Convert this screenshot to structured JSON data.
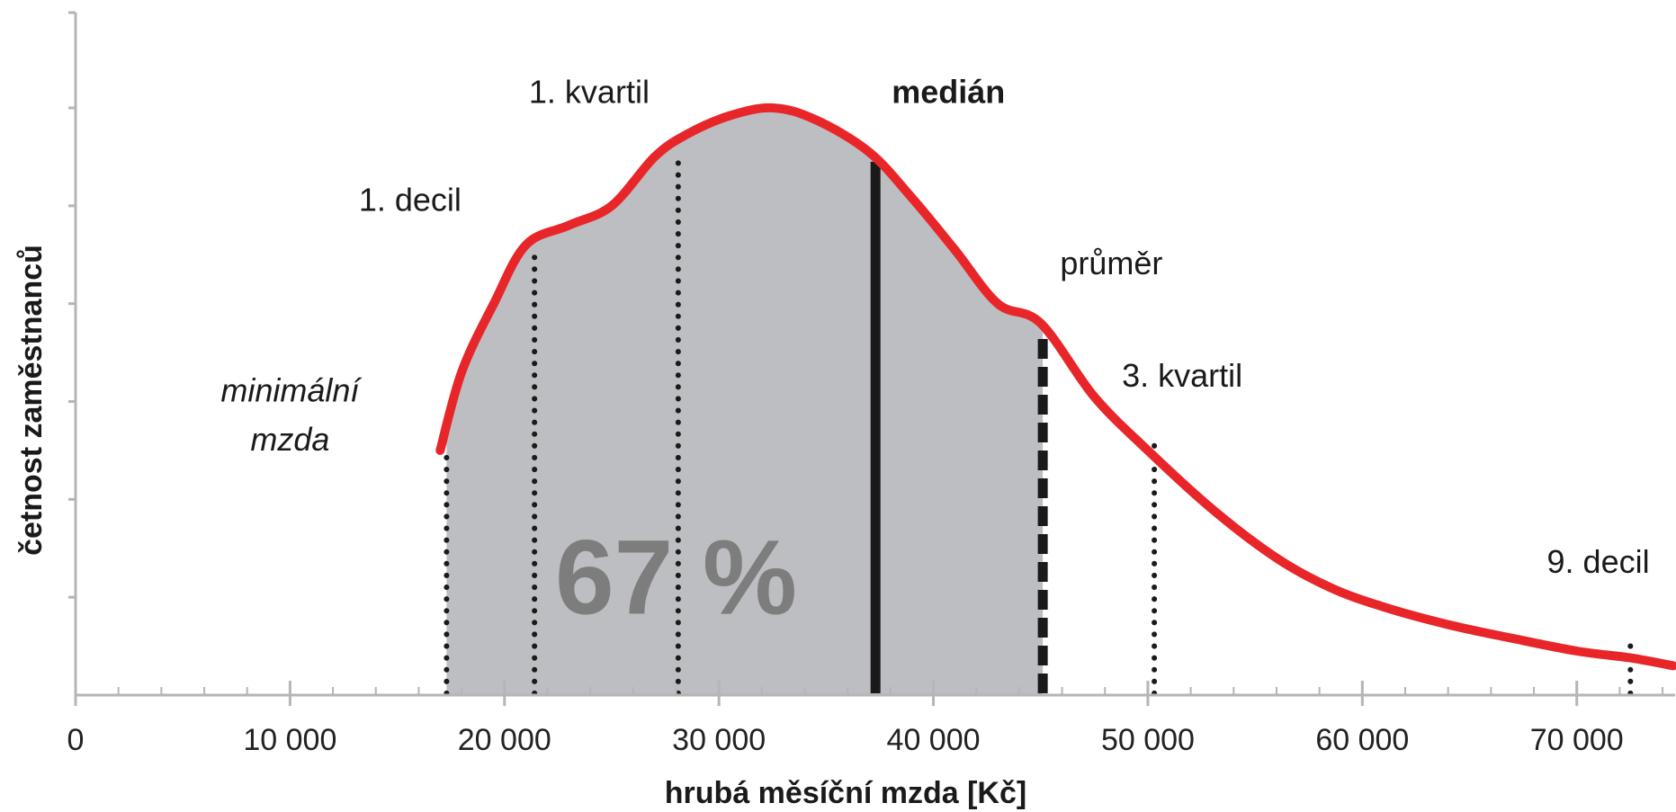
{
  "chart_data": {
    "type": "area",
    "xlabel": "hrubá měsíční mzda [Kč]",
    "ylabel": "četnost zaměstnanců",
    "xlim": [
      0,
      74500
    ],
    "ylim": [
      0,
      6
    ],
    "x_ticks": [
      0,
      10000,
      20000,
      30000,
      40000,
      50000,
      60000,
      70000
    ],
    "x_tick_labels": [
      "0",
      "10 000",
      "20 000",
      "30 000",
      "40 000",
      "50 000",
      "60 000",
      "70 000"
    ],
    "y_ticks": [
      1,
      2,
      3,
      4,
      5,
      6
    ],
    "grid": false,
    "curve_color": "#e8262a",
    "fill_color": "#bdbec1",
    "series": [
      {
        "x": [
          17000,
          18000,
          19500,
          21000,
          23000,
          25000,
          27000,
          28500,
          30500,
          32500,
          34500,
          37000,
          39000,
          41000,
          43000,
          45000,
          47500,
          50000,
          53000,
          56000,
          58500,
          61000,
          64000,
          67000,
          70000,
          72500,
          74500
        ],
        "y": [
          2.5,
          3.3,
          4.0,
          4.6,
          4.8,
          5.0,
          5.5,
          5.73,
          5.92,
          6.0,
          5.88,
          5.55,
          5.08,
          4.55,
          4.0,
          3.8,
          3.05,
          2.5,
          1.9,
          1.4,
          1.1,
          0.9,
          0.72,
          0.58,
          0.45,
          0.38,
          0.3
        ]
      }
    ],
    "shaded_range": [
      17300,
      45100
    ],
    "markers": [
      {
        "x": 17300,
        "style": "dotted",
        "top": 2.5
      },
      {
        "x": 21400,
        "style": "dotted",
        "top": 4.55
      },
      {
        "x": 28100,
        "style": "dotted",
        "top": 5.45
      },
      {
        "x": 37300,
        "style": "solid",
        "top": 5.45
      },
      {
        "x": 45100,
        "style": "dashed",
        "top": 3.7
      },
      {
        "x": 50300,
        "style": "dotted",
        "top": 2.55
      },
      {
        "x": 72500,
        "style": "dotted",
        "top": 0.55
      }
    ],
    "annotations": [
      {
        "text": "minimální",
        "x": 10000,
        "y": 3.0,
        "style": "italic"
      },
      {
        "text": "mzda",
        "x": 10000,
        "y": 2.5,
        "style": "italic"
      },
      {
        "text": "1. decil",
        "x": 15600,
        "y": 4.95,
        "style": "normal"
      },
      {
        "text": "1. kvartil",
        "x": 23950,
        "y": 6.05,
        "style": "normal"
      },
      {
        "text": "medián",
        "x": 40700,
        "y": 6.05,
        "style": "bold"
      },
      {
        "text": "průměr",
        "x": 48300,
        "y": 4.3,
        "style": "normal"
      },
      {
        "text": "3. kvartil",
        "x": 51600,
        "y": 3.15,
        "style": "normal"
      },
      {
        "text": "9. decil",
        "x": 71000,
        "y": 1.25,
        "style": "normal"
      }
    ],
    "area_label": {
      "text": "67 %",
      "x": 28000,
      "y": 1.2
    }
  }
}
